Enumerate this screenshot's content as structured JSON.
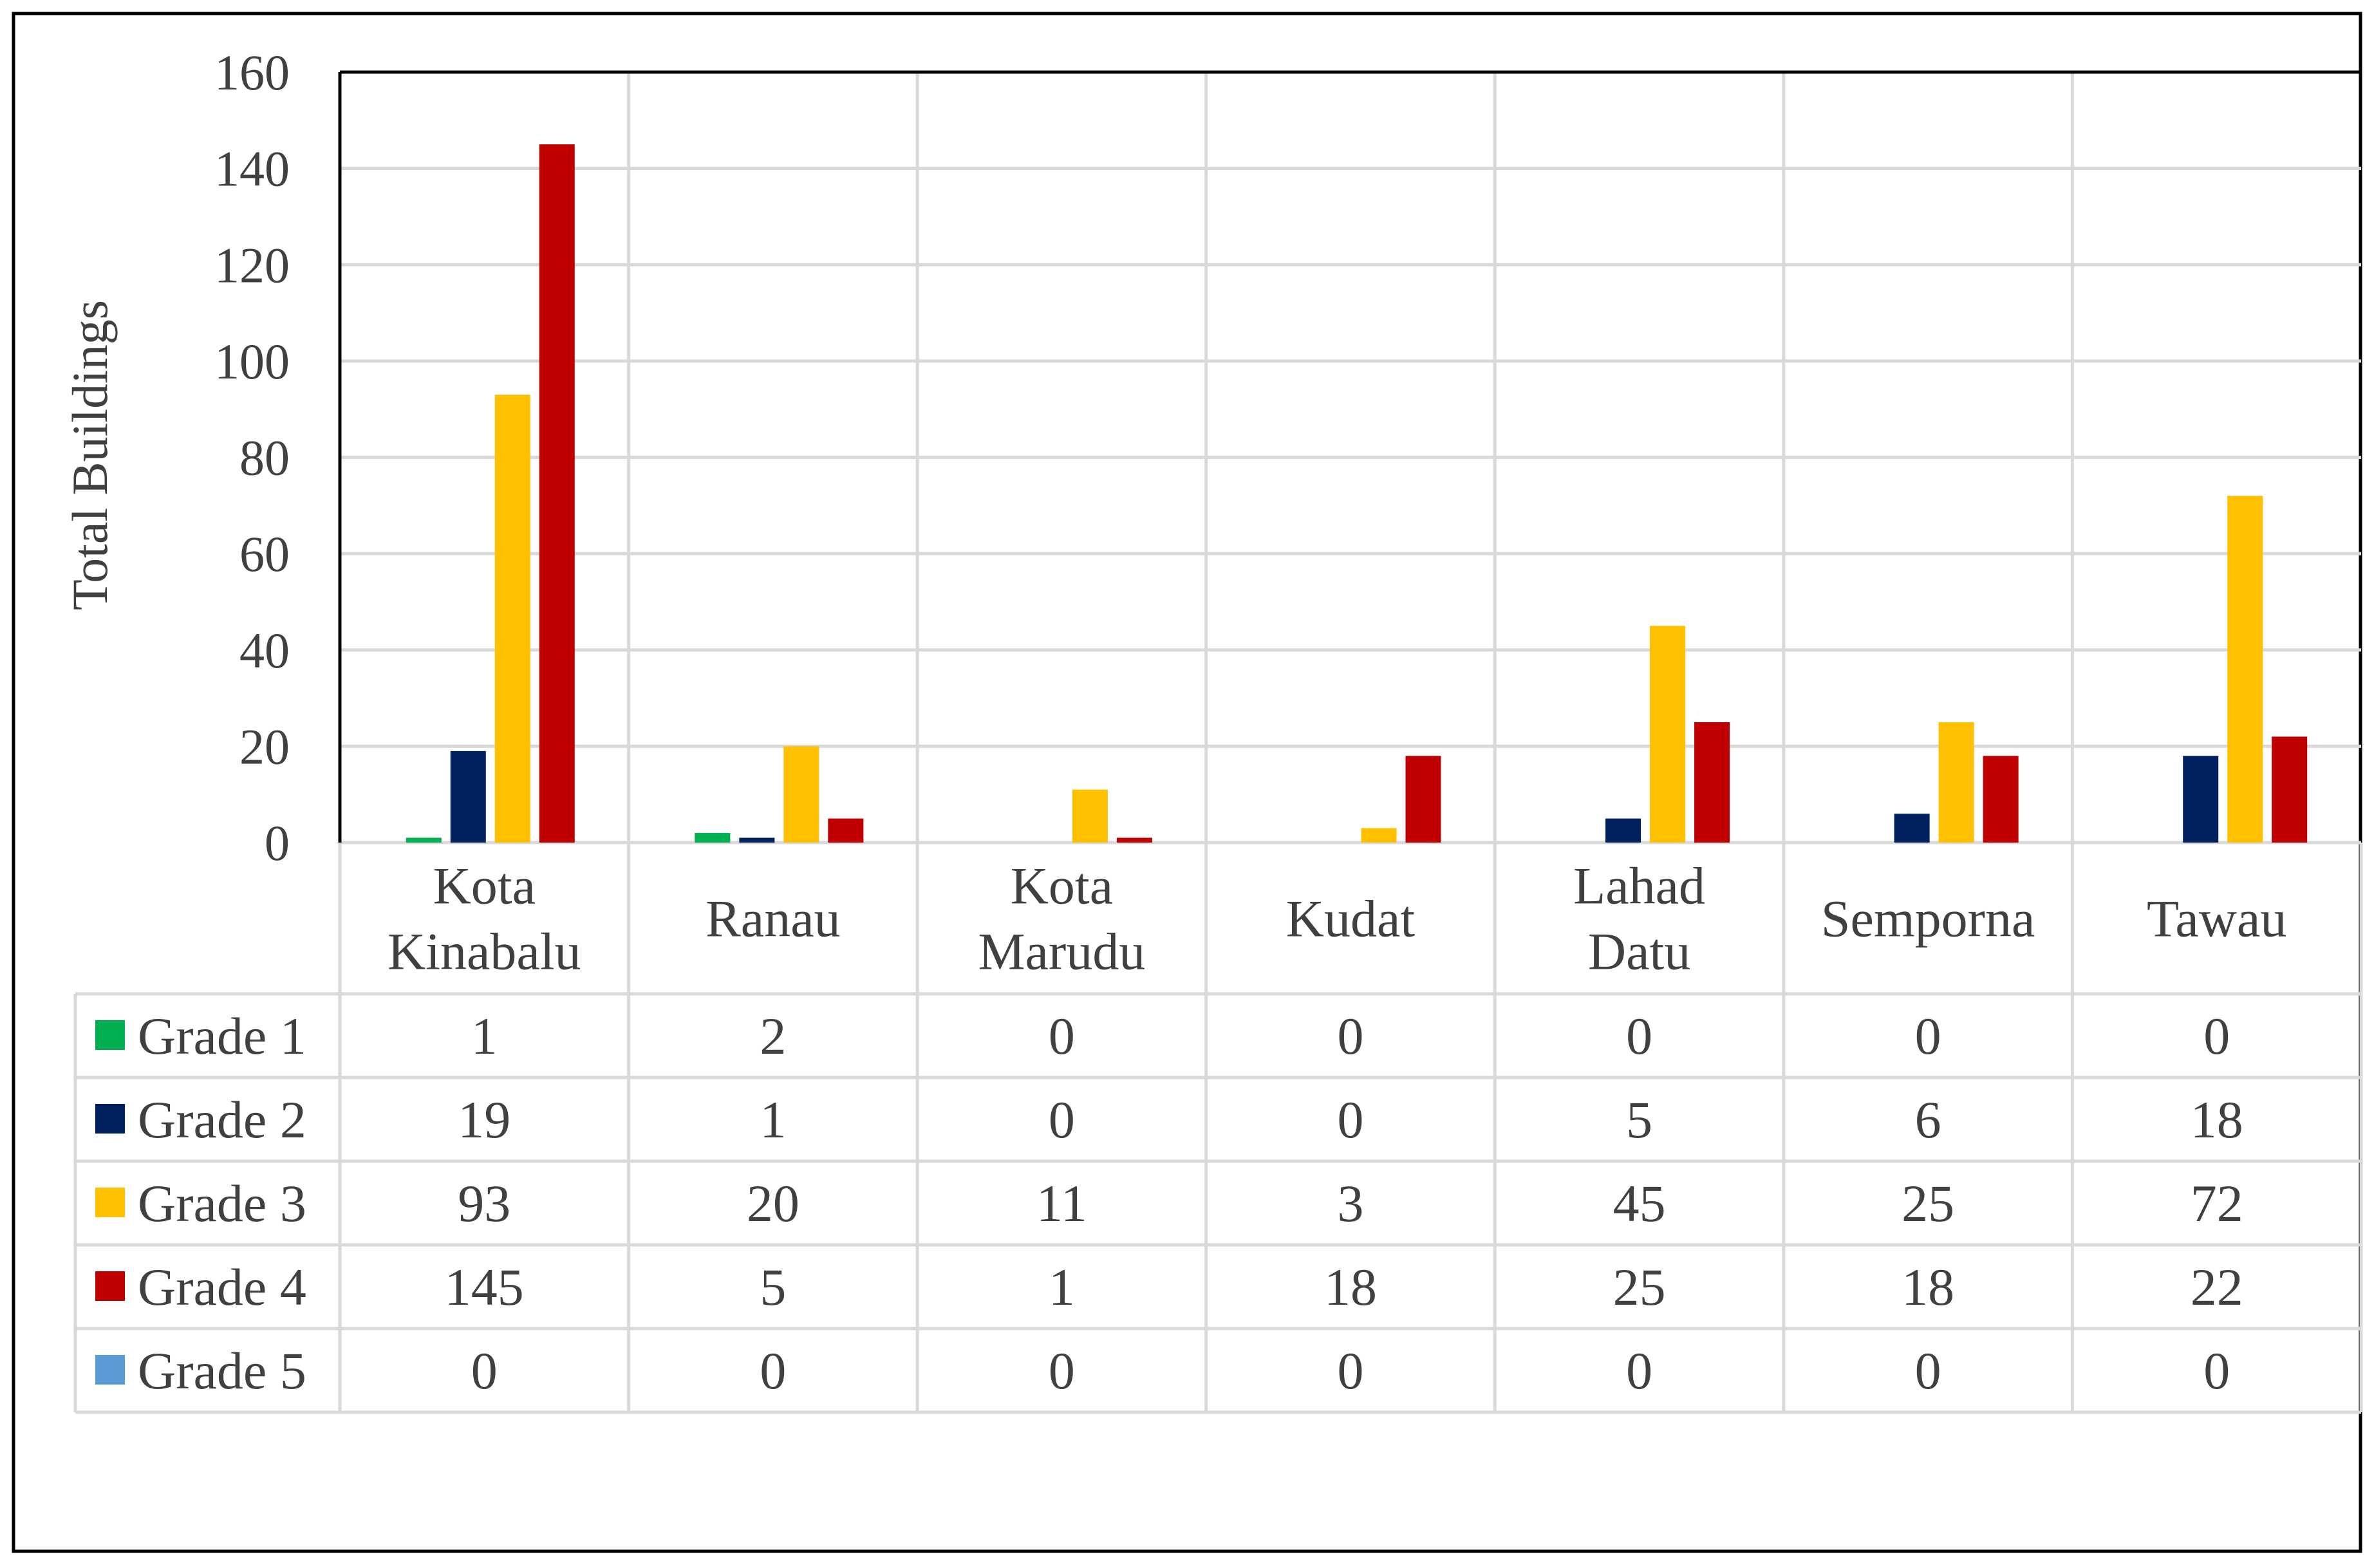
{
  "chart_data": {
    "type": "bar",
    "ylabel": "Total Buildings",
    "ylim": [
      0,
      160
    ],
    "yticks": [
      "0",
      "20",
      "40",
      "60",
      "80",
      "100",
      "120",
      "140",
      "160"
    ],
    "grid": true,
    "legend": "data-table",
    "categories": [
      [
        "Kota",
        "Kinabalu"
      ],
      [
        "Ranau"
      ],
      [
        "Kota",
        "Marudu"
      ],
      [
        "Kudat"
      ],
      [
        "Lahad",
        "Datu"
      ],
      [
        "Semporna"
      ],
      [
        "Tawau"
      ]
    ],
    "series": [
      {
        "name": "Grade 1",
        "color": "#00b050",
        "values": [
          1,
          2,
          0,
          0,
          0,
          0,
          0
        ]
      },
      {
        "name": "Grade 2",
        "color": "#002060",
        "values": [
          19,
          1,
          0,
          0,
          5,
          6,
          18
        ]
      },
      {
        "name": "Grade 3",
        "color": "#ffc000",
        "values": [
          93,
          20,
          11,
          3,
          45,
          25,
          72
        ]
      },
      {
        "name": "Grade 4",
        "color": "#c00000",
        "values": [
          145,
          5,
          1,
          18,
          25,
          18,
          22
        ]
      },
      {
        "name": "Grade 5",
        "color": "#5b9bd5",
        "values": [
          0,
          0,
          0,
          0,
          0,
          0,
          0
        ]
      }
    ]
  }
}
